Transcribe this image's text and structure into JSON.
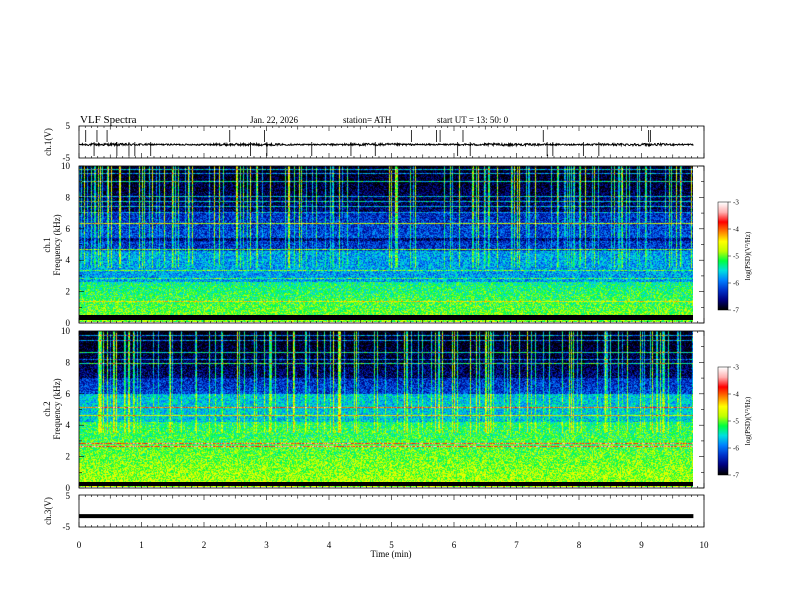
{
  "header": {
    "title": "VLF  Spectra",
    "date": "Jan. 22, 2026",
    "station": "station= ATH",
    "start": "start  UT  =   13: 50: 0"
  },
  "chart_data": [
    {
      "type": "line",
      "name": "ch1-waveform",
      "ylabel": "ch.1(V)",
      "ylim": [
        -5,
        5
      ],
      "yticks": [
        "5",
        "-5"
      ],
      "xlim": [
        0,
        10
      ],
      "level": -0.8,
      "noise": 0.3
    },
    {
      "type": "heatmap",
      "name": "ch1-spectrogram",
      "ylabel": "ch.1\nFrequency  (kHz)",
      "ylabel_lines": [
        "ch.1",
        "Frequency  (kHz)"
      ],
      "ylim": [
        0,
        10
      ],
      "yticks": [
        "0",
        "2",
        "4",
        "6",
        "8",
        "10"
      ],
      "xlim": [
        0,
        9.83
      ],
      "colorbar": {
        "label": "log(PSD)(V²/Hz)",
        "range": [
          -7,
          -3
        ],
        "ticks": [
          "-3",
          "-4",
          "-5",
          "-6",
          "-7"
        ]
      }
    },
    {
      "type": "heatmap",
      "name": "ch2-spectrogram",
      "ylabel": "ch.2\nFrequency  (kHz)",
      "ylabel_lines": [
        "ch.2",
        "Frequency  (kHz)"
      ],
      "ylim": [
        0,
        10
      ],
      "yticks": [
        "0",
        "2",
        "4",
        "6",
        "8",
        "10"
      ],
      "xlim": [
        0,
        9.83
      ],
      "colorbar": {
        "label": "log(PSD)(V²/Hz)",
        "range": [
          -7,
          -3
        ],
        "ticks": [
          "-3",
          "-4",
          "-5",
          "-6",
          "-7"
        ]
      }
    },
    {
      "type": "line",
      "name": "ch3-waveform",
      "ylabel": "ch.3(V)",
      "ylim": [
        -5,
        5
      ],
      "yticks": [
        "5",
        "-5"
      ],
      "xlim": [
        0,
        10
      ],
      "level": -1.6,
      "noise": 0.0
    }
  ],
  "xaxis": {
    "label": "Time  (min)",
    "ticks": [
      "0",
      "1",
      "2",
      "3",
      "4",
      "5",
      "6",
      "7",
      "8",
      "9",
      "10"
    ]
  },
  "colors": {
    "colormap": [
      "#000000",
      "#000080",
      "#0033cc",
      "#0080ff",
      "#00e0e0",
      "#00ff40",
      "#c0ff00",
      "#ffff00",
      "#ff8000",
      "#ff0000",
      "#ffb0b0",
      "#ffffff"
    ]
  }
}
